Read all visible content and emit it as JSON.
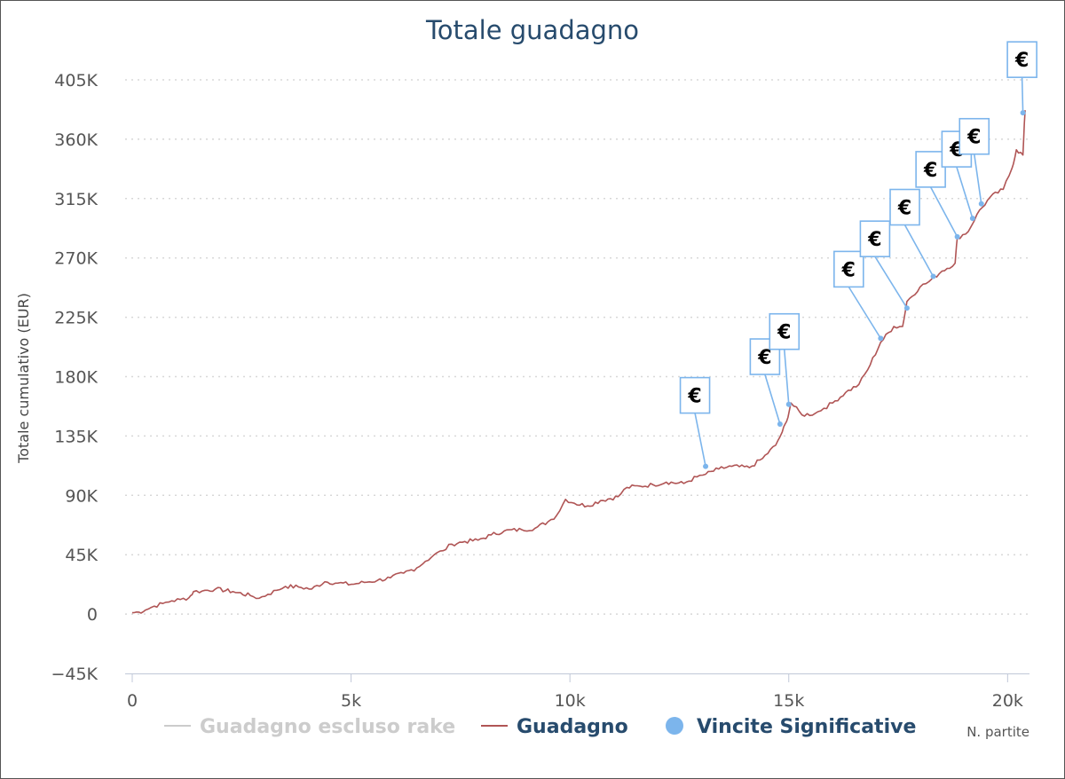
{
  "chart_data": {
    "type": "line",
    "title": "Totale guadagno",
    "ylabel": "Totale cumulativo (EUR)",
    "xlabel": "N. partite",
    "xlim": [
      0,
      20500
    ],
    "ylim": [
      -45000,
      405000
    ],
    "y_ticks": [
      -45000,
      0,
      45000,
      90000,
      135000,
      180000,
      225000,
      270000,
      315000,
      360000,
      405000
    ],
    "y_tick_labels": [
      "−45K",
      "0",
      "45K",
      "90K",
      "135K",
      "180K",
      "225K",
      "270K",
      "315K",
      "360K",
      "405K"
    ],
    "x_ticks": [
      0,
      5000,
      10000,
      15000,
      20000
    ],
    "x_tick_labels": [
      "0",
      "5k",
      "10k",
      "15k",
      "20k"
    ],
    "grid": "horizontal-dotted",
    "legend_position": "bottom",
    "series": [
      {
        "name": "Guadagno escluso rake",
        "color": "#cccccc",
        "hidden": true,
        "points": []
      },
      {
        "name": "Guadagno",
        "color": "#b05555",
        "points": [
          [
            0,
            1000
          ],
          [
            150,
            1500
          ],
          [
            300,
            3000
          ],
          [
            500,
            6000
          ],
          [
            700,
            8000
          ],
          [
            900,
            10000
          ],
          [
            1100,
            11000
          ],
          [
            1300,
            12500
          ],
          [
            1400,
            17000
          ],
          [
            1600,
            17500
          ],
          [
            1900,
            19000
          ],
          [
            2300,
            17000
          ],
          [
            2700,
            14000
          ],
          [
            2900,
            12000
          ],
          [
            3100,
            15000
          ],
          [
            3300,
            18000
          ],
          [
            3500,
            21000
          ],
          [
            3800,
            20500
          ],
          [
            4100,
            19000
          ],
          [
            4400,
            24500
          ],
          [
            4700,
            23500
          ],
          [
            5000,
            22500
          ],
          [
            5300,
            24000
          ],
          [
            5600,
            25500
          ],
          [
            5900,
            27500
          ],
          [
            6200,
            31000
          ],
          [
            6500,
            35000
          ],
          [
            6700,
            40000
          ],
          [
            6900,
            45000
          ],
          [
            7100,
            48000
          ],
          [
            7300,
            53000
          ],
          [
            7600,
            55000
          ],
          [
            7900,
            56000
          ],
          [
            8200,
            60000
          ],
          [
            8500,
            63000
          ],
          [
            8900,
            64000
          ],
          [
            9200,
            65000
          ],
          [
            9500,
            70000
          ],
          [
            9700,
            75000
          ],
          [
            9900,
            87000
          ],
          [
            10100,
            84000
          ],
          [
            10400,
            82000
          ],
          [
            10700,
            86000
          ],
          [
            11100,
            89000
          ],
          [
            11300,
            96000
          ],
          [
            11600,
            97000
          ],
          [
            11900,
            98000
          ],
          [
            12200,
            100000
          ],
          [
            12600,
            99000
          ],
          [
            12900,
            104000
          ],
          [
            13100,
            106000
          ],
          [
            13400,
            110000
          ],
          [
            13700,
            112000
          ],
          [
            14100,
            111000
          ],
          [
            14400,
            118000
          ],
          [
            14700,
            128000
          ],
          [
            14850,
            138000
          ],
          [
            14950,
            146000
          ],
          [
            15050,
            160000
          ],
          [
            15300,
            151000
          ],
          [
            15600,
            152000
          ],
          [
            15800,
            156000
          ],
          [
            16000,
            160000
          ],
          [
            16300,
            168000
          ],
          [
            16600,
            174000
          ],
          [
            16800,
            185000
          ],
          [
            17100,
            206000
          ],
          [
            17400,
            218000
          ],
          [
            17600,
            218000
          ],
          [
            17700,
            237000
          ],
          [
            18000,
            248000
          ],
          [
            18200,
            252000
          ],
          [
            18500,
            260000
          ],
          [
            18800,
            266000
          ],
          [
            18850,
            285000
          ],
          [
            19100,
            290000
          ],
          [
            19300,
            303000
          ],
          [
            19600,
            316000
          ],
          [
            19900,
            322000
          ],
          [
            20100,
            338000
          ],
          [
            20200,
            352000
          ],
          [
            20350,
            348000
          ],
          [
            20400,
            382000
          ]
        ]
      }
    ],
    "markers": {
      "name": "Vincite Significative",
      "color": "#7cb5ec",
      "symbol": "€",
      "points": [
        [
          13100,
          112000
        ],
        [
          14800,
          144000
        ],
        [
          15000,
          159000
        ],
        [
          17100,
          209000
        ],
        [
          17700,
          232000
        ],
        [
          18300,
          256000
        ],
        [
          18850,
          286000
        ],
        [
          19200,
          300000
        ],
        [
          19400,
          311000
        ],
        [
          20350,
          380000
        ]
      ]
    }
  }
}
